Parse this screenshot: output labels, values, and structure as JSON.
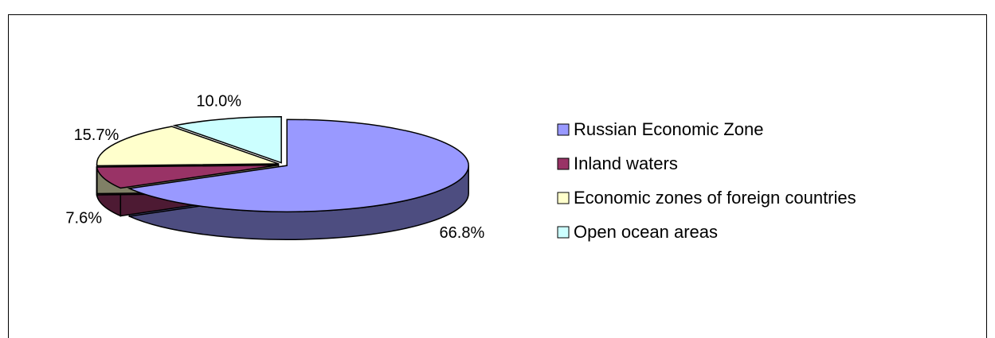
{
  "chart_data": {
    "type": "pie",
    "categories": [
      "Russian Economic Zone",
      "Inland waters",
      "Economic zones of foreign countries",
      "Open ocean areas"
    ],
    "values": [
      66.8,
      7.6,
      15.7,
      10.0
    ],
    "value_labels": [
      "66.8%",
      "7.6%",
      "15.7%",
      "10.0%"
    ],
    "colors": [
      "#9999ff",
      "#993366",
      "#ffffcc",
      "#ccffff"
    ],
    "side_colors": [
      "#4d4d80",
      "#4d1a33",
      "#808066",
      "#668080"
    ],
    "legend": "right"
  }
}
